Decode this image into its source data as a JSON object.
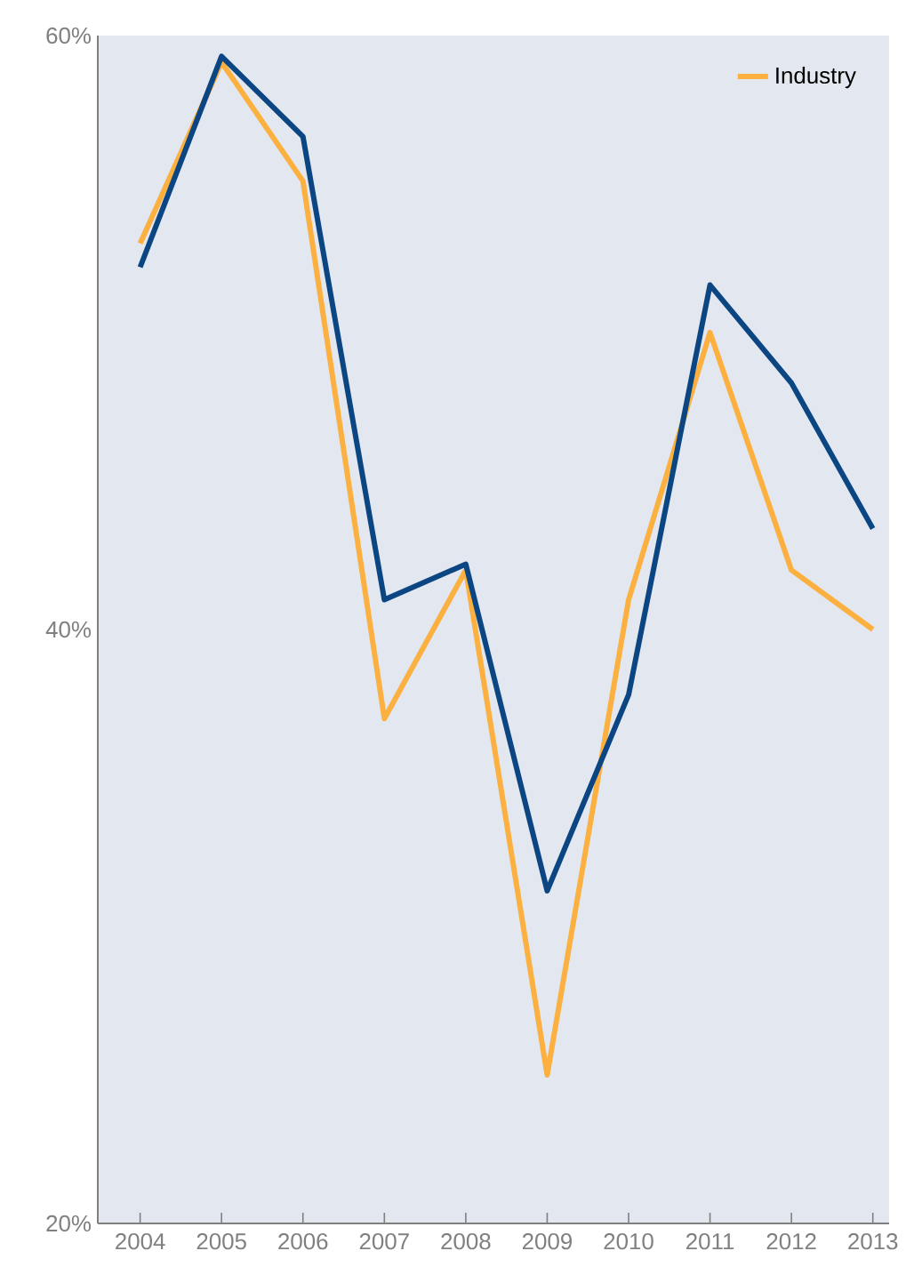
{
  "chart_data": {
    "type": "line",
    "categories": [
      "2004",
      "2005",
      "2006",
      "2007",
      "2008",
      "2009",
      "2010",
      "2011",
      "2012",
      "2013"
    ],
    "series": [
      {
        "name": "Industry",
        "color": "#fbb040",
        "values": [
          53.0,
          59.1,
          55.1,
          37.0,
          42.0,
          25.0,
          41.0,
          50.0,
          42.0,
          40.0
        ]
      },
      {
        "color": "#0b4582",
        "values": [
          52.2,
          59.3,
          56.6,
          41.0,
          42.2,
          31.2,
          37.8,
          51.6,
          48.3,
          43.4
        ]
      }
    ],
    "ylim": [
      20,
      60
    ],
    "yticks": [
      {
        "value": 20,
        "label": "20%"
      },
      {
        "value": 40,
        "label": "40%"
      },
      {
        "value": 60,
        "label": "60%"
      }
    ],
    "grid": false,
    "legend": "top right",
    "marker": "none",
    "line_style": "solid"
  }
}
